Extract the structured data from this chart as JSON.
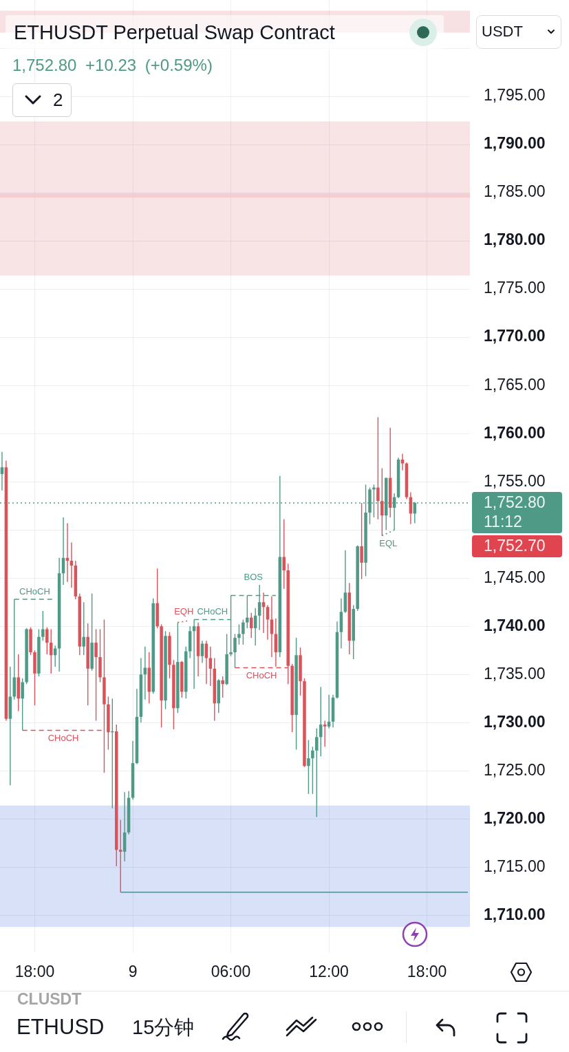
{
  "chart_data": {
    "type": "candlestick",
    "title": "ETHUSDT Perpetual Swap Contract",
    "subtitle": "1,752.80 +10.23 (+0.59%)",
    "categories": [
      null,
      null,
      null,
      null,
      null,
      null,
      null,
      null,
      "18:00",
      null,
      null,
      null,
      null,
      null,
      null,
      null,
      null,
      null,
      null,
      null,
      null,
      null,
      null,
      null,
      null,
      null,
      null,
      null,
      null,
      null,
      null,
      null,
      "9",
      null,
      null,
      null,
      null,
      null,
      null,
      null,
      null,
      null,
      null,
      null,
      null,
      null,
      null,
      null,
      null,
      null,
      null,
      null,
      null,
      null,
      null,
      null,
      "06:00",
      null,
      null,
      null,
      null,
      null,
      null,
      null,
      null,
      null,
      null,
      null,
      null,
      null,
      null,
      null,
      null,
      null,
      null,
      null,
      null,
      null,
      null,
      null,
      "12:00",
      null,
      null,
      null,
      null,
      null,
      null,
      null,
      null,
      null,
      null,
      null,
      null,
      null,
      null,
      null,
      null,
      null,
      null,
      null,
      null,
      null,
      null,
      null,
      "18:00",
      null,
      null,
      null,
      null,
      null,
      null,
      null,
      null,
      null,
      null
    ],
    "ohlc": [
      [
        1755.8,
        1758.1,
        1754.1,
        1756.5
      ],
      [
        1756.5,
        1757.2,
        1730.2,
        1730.4
      ],
      [
        1730.4,
        1735.8,
        1723.5,
        1732.7
      ],
      [
        1732.7,
        1742.8,
        1732.4,
        1734.7
      ],
      [
        1734.7,
        1737.1,
        1731.2,
        1732.5
      ],
      [
        1732.5,
        1734.6,
        1729.2,
        1734.2
      ],
      [
        1734.2,
        1739.8,
        1734.0,
        1739.7
      ],
      [
        1739.7,
        1739.9,
        1737.0,
        1737.3
      ],
      [
        1737.3,
        1737.5,
        1731.8,
        1735.1
      ],
      [
        1735.1,
        1739.7,
        1734.8,
        1738.9
      ],
      [
        1738.9,
        1741.6,
        1738.5,
        1739.7
      ],
      [
        1739.7,
        1739.9,
        1737.1,
        1738.3
      ],
      [
        1738.3,
        1739.7,
        1735.1,
        1737.0
      ],
      [
        1737.0,
        1738.0,
        1735.8,
        1737.7
      ],
      [
        1737.7,
        1747.1,
        1735.3,
        1745.5
      ],
      [
        1745.5,
        1751.3,
        1744.3,
        1747.1
      ],
      [
        1747.1,
        1750.7,
        1744.6,
        1746.8
      ],
      [
        1746.8,
        1748.7,
        1744.0,
        1746.3
      ],
      [
        1746.3,
        1746.8,
        1742.8,
        1743.1
      ],
      [
        1743.1,
        1743.4,
        1737.0,
        1737.9
      ],
      [
        1737.9,
        1742.5,
        1737.0,
        1738.9
      ],
      [
        1738.9,
        1740.3,
        1731.8,
        1735.6
      ],
      [
        1735.6,
        1743.4,
        1735.4,
        1738.3
      ],
      [
        1738.3,
        1739.7,
        1730.2,
        1736.8
      ],
      [
        1736.8,
        1739.7,
        1734.2,
        1734.7
      ],
      [
        1734.7,
        1740.7,
        1724.8,
        1731.9
      ],
      [
        1731.9,
        1732.7,
        1727.2,
        1729.0
      ],
      [
        1729.0,
        1732.5,
        1721.1,
        1729.1
      ],
      [
        1729.1,
        1729.8,
        1715.1,
        1716.8
      ],
      [
        1716.8,
        1719.9,
        1712.4,
        1716.6
      ],
      [
        1716.6,
        1722.8,
        1715.6,
        1718.6
      ],
      [
        1718.6,
        1722.9,
        1718.4,
        1722.2
      ],
      [
        1722.2,
        1728.1,
        1722.0,
        1725.8
      ],
      [
        1725.8,
        1733.5,
        1725.7,
        1730.6
      ],
      [
        1730.6,
        1736.7,
        1730.0,
        1735.0
      ],
      [
        1735.0,
        1737.9,
        1732.4,
        1735.7
      ],
      [
        1735.7,
        1737.3,
        1732.0,
        1733.2
      ],
      [
        1733.2,
        1742.9,
        1733.0,
        1742.4
      ],
      [
        1742.4,
        1746.0,
        1739.8,
        1740.0
      ],
      [
        1740.0,
        1740.2,
        1729.5,
        1732.3
      ],
      [
        1732.3,
        1739.5,
        1731.4,
        1739.0
      ],
      [
        1739.0,
        1739.4,
        1734.6,
        1736.0
      ],
      [
        1736.0,
        1736.5,
        1729.3,
        1731.5
      ],
      [
        1731.5,
        1740.4,
        1731.0,
        1736.3
      ],
      [
        1736.3,
        1736.4,
        1732.6,
        1733.2
      ],
      [
        1733.2,
        1737.9,
        1732.5,
        1737.4
      ],
      [
        1737.4,
        1740.0,
        1736.7,
        1739.5
      ],
      [
        1739.5,
        1740.7,
        1733.5,
        1740.0
      ],
      [
        1740.0,
        1740.4,
        1734.8,
        1736.9
      ],
      [
        1736.9,
        1738.5,
        1736.2,
        1738.2
      ],
      [
        1738.2,
        1738.5,
        1734.0,
        1736.7
      ],
      [
        1736.7,
        1737.9,
        1733.8,
        1735.6
      ],
      [
        1735.6,
        1736.7,
        1730.2,
        1732.0
      ],
      [
        1732.0,
        1734.5,
        1731.0,
        1734.4
      ],
      [
        1734.4,
        1734.8,
        1732.6,
        1734.0
      ],
      [
        1734.0,
        1739.2,
        1733.9,
        1737.1
      ],
      [
        1737.1,
        1743.2,
        1736.9,
        1737.3
      ],
      [
        1737.3,
        1739.2,
        1735.7,
        1738.8
      ],
      [
        1738.8,
        1740.2,
        1738.1,
        1739.2
      ],
      [
        1739.2,
        1740.7,
        1738.1,
        1740.4
      ],
      [
        1740.4,
        1743.2,
        1739.8,
        1740.9
      ],
      [
        1740.9,
        1741.4,
        1738.8,
        1739.8
      ],
      [
        1739.8,
        1741.9,
        1738.0,
        1741.1
      ],
      [
        1741.1,
        1744.3,
        1739.6,
        1742.5
      ],
      [
        1742.5,
        1743.5,
        1739.3,
        1742.0
      ],
      [
        1742.0,
        1742.2,
        1738.6,
        1740.7
      ],
      [
        1740.7,
        1743.1,
        1736.8,
        1739.2
      ],
      [
        1739.2,
        1740.8,
        1735.8,
        1737.3
      ],
      [
        1737.3,
        1755.6,
        1736.8,
        1747.2
      ],
      [
        1747.2,
        1751.1,
        1743.9,
        1745.8
      ],
      [
        1745.8,
        1746.5,
        1734.0,
        1735.9
      ],
      [
        1735.9,
        1736.1,
        1729.0,
        1730.8
      ],
      [
        1730.8,
        1738.8,
        1727.2,
        1737.0
      ],
      [
        1737.0,
        1737.8,
        1732.8,
        1734.3
      ],
      [
        1734.3,
        1734.6,
        1725.4,
        1725.5
      ],
      [
        1725.5,
        1728.2,
        1722.6,
        1726.3
      ],
      [
        1726.3,
        1727.5,
        1722.6,
        1727.1
      ],
      [
        1727.1,
        1729.4,
        1720.2,
        1728.5
      ],
      [
        1728.5,
        1733.7,
        1726.5,
        1729.8
      ],
      [
        1729.8,
        1730.2,
        1727.5,
        1729.6
      ],
      [
        1729.6,
        1732.9,
        1729.4,
        1730.1
      ],
      [
        1730.1,
        1732.9,
        1729.5,
        1732.6
      ],
      [
        1732.6,
        1740.5,
        1732.5,
        1739.4
      ],
      [
        1739.4,
        1742.9,
        1737.7,
        1741.5
      ],
      [
        1741.5,
        1747.9,
        1741.4,
        1743.5
      ],
      [
        1743.5,
        1744.5,
        1737.1,
        1738.5
      ],
      [
        1738.5,
        1742.2,
        1736.6,
        1741.8
      ],
      [
        1741.8,
        1748.4,
        1741.6,
        1748.3
      ],
      [
        1748.3,
        1752.8,
        1744.9,
        1746.6
      ],
      [
        1746.6,
        1754.7,
        1745.2,
        1751.8
      ],
      [
        1751.8,
        1754.4,
        1750.6,
        1754.2
      ],
      [
        1754.2,
        1754.7,
        1751.3,
        1754.4
      ],
      [
        1754.4,
        1761.7,
        1751.1,
        1753.0
      ],
      [
        1753.0,
        1756.4,
        1749.4,
        1751.5
      ],
      [
        1751.5,
        1755.4,
        1750.0,
        1755.4
      ],
      [
        1755.4,
        1760.6,
        1751.3,
        1752.3
      ],
      [
        1752.3,
        1753.8,
        1750.0,
        1753.4
      ],
      [
        1753.4,
        1757.5,
        1753.3,
        1757.3
      ],
      [
        1757.3,
        1757.9,
        1756.2,
        1756.9
      ],
      [
        1756.9,
        1757.0,
        1753.2,
        1753.4
      ],
      [
        1753.4,
        1753.9,
        1750.6,
        1751.7
      ],
      [
        1751.7,
        1752.9,
        1750.7,
        1752.8
      ],
      null,
      null,
      null,
      null,
      null,
      null,
      null,
      null,
      null,
      null,
      null,
      null,
      null
    ],
    "colors": [
      "#4e9a86",
      "#d9535b",
      "#4e9a86",
      "#4e9a86",
      "#d9535b",
      "#4e9a86",
      "#4e9a86",
      "#d9535b",
      "#d9535b",
      "#4e9a86",
      "#4e9a86",
      "#d9535b",
      "#d9535b",
      "#4e9a86",
      "#4e9a86",
      "#4e9a86",
      "#d9535b",
      "#d9535b",
      "#d9535b",
      "#d9535b",
      "#4e9a86",
      "#d9535b",
      "#4e9a86",
      "#d9535b",
      "#d9535b",
      "#d9535b",
      "#d9535b",
      "#4e9a86",
      "#d9535b",
      "#d9535b",
      "#4e9a86",
      "#4e9a86",
      "#4e9a86",
      "#4e9a86",
      "#4e9a86",
      "#4e9a86",
      "#d9535b",
      "#4e9a86",
      "#d9535b",
      "#d9535b",
      "#4e9a86",
      "#d9535b",
      "#d9535b",
      "#4e9a86",
      "#d9535b",
      "#4e9a86",
      "#4e9a86",
      "#4e9a86",
      "#d9535b",
      "#4e9a86",
      "#d9535b",
      "#d9535b",
      "#d9535b",
      "#4e9a86",
      "#d9535b",
      "#4e9a86",
      "#4e9a86",
      "#4e9a86",
      "#4e9a86",
      "#4e9a86",
      "#4e9a86",
      "#d9535b",
      "#4e9a86",
      "#4e9a86",
      "#d9535b",
      "#d9535b",
      "#d9535b",
      "#d9535b",
      "#4e9a86",
      "#d9535b",
      "#d9535b",
      "#d9535b",
      "#4e9a86",
      "#d9535b",
      "#d9535b",
      "#4e9a86",
      "#4e9a86",
      "#4e9a86",
      "#4e9a86",
      "#d9535b",
      "#4e9a86",
      "#4e9a86",
      "#4e9a86",
      "#4e9a86",
      "#4e9a86",
      "#d9535b",
      "#4e9a86",
      "#4e9a86",
      "#d9535b",
      "#4e9a86",
      "#4e9a86",
      "#4e9a86",
      "#d9535b",
      "#d9535b",
      "#4e9a86",
      "#d9535b",
      "#4e9a86",
      "#4e9a86",
      "#d9535b",
      "#d9535b",
      "#d9535b",
      "#4e9a86",
      null,
      null,
      null,
      null,
      null,
      null,
      null,
      null,
      null,
      null,
      null,
      null,
      null
    ],
    "series": [
      {
        "type": "line",
        "name": "CHoCH",
        "color": "#4e9a86",
        "line_style": "dashed",
        "values": [
          null,
          null,
          null,
          1742.8,
          1742.8,
          1742.8,
          1742.8,
          1742.8,
          1742.8,
          1742.8,
          1742.8,
          1742.8,
          1742.8,
          1742.8,
          null,
          null,
          null,
          null,
          null,
          null,
          null,
          null,
          null,
          null,
          null,
          null,
          null,
          null,
          null,
          null,
          null,
          null,
          null,
          null,
          null,
          null,
          null,
          null,
          null,
          null,
          null,
          null,
          null,
          null,
          null,
          null,
          null,
          null,
          null,
          null,
          null,
          null,
          null,
          null,
          null,
          null,
          null,
          null,
          null,
          null,
          null,
          null,
          null,
          null,
          null,
          null,
          null,
          null,
          null,
          null,
          null,
          null,
          null,
          null,
          null,
          null,
          null,
          null,
          null,
          null,
          null,
          null,
          null,
          null,
          null,
          null,
          null,
          null,
          null,
          null,
          null,
          null,
          null,
          null,
          null,
          null,
          null,
          null,
          null,
          null,
          null,
          null,
          null,
          null,
          null,
          null,
          null,
          null,
          null,
          null,
          null,
          null,
          null,
          null,
          null
        ]
      },
      {
        "type": "line",
        "name": "CHoCH",
        "color": "#d9535b",
        "line_style": "dashed",
        "values": [
          null,
          null,
          null,
          null,
          null,
          1729.2,
          1729.2,
          1729.2,
          1729.2,
          1729.2,
          1729.2,
          1729.2,
          1729.2,
          1729.2,
          1729.2,
          1729.2,
          1729.2,
          1729.2,
          1729.2,
          1729.2,
          1729.2,
          1729.2,
          1729.2,
          1729.2,
          1729.2,
          1729.2,
          null,
          null,
          null,
          null,
          null,
          null,
          null,
          null,
          null,
          null,
          null,
          null,
          null,
          null,
          null,
          null,
          null,
          null,
          null,
          null,
          null,
          null,
          null,
          null,
          null,
          null,
          null,
          null,
          null,
          null,
          null,
          null,
          null,
          null,
          null,
          null,
          null,
          null,
          null,
          null,
          null,
          null,
          null,
          null,
          null,
          null,
          null,
          null,
          null,
          null,
          null,
          null,
          null,
          null,
          null,
          null,
          null,
          null,
          null,
          null,
          null,
          null,
          null,
          null,
          null,
          null,
          null,
          null,
          null,
          null,
          null,
          null,
          null,
          null,
          null,
          null,
          null,
          null,
          null,
          null,
          null,
          null,
          null,
          null,
          null,
          null,
          null,
          null,
          null
        ]
      },
      {
        "type": "line",
        "name": "EQH",
        "color": "#d9535b",
        "line_style": "dotted",
        "values": [
          null,
          null,
          null,
          null,
          null,
          null,
          null,
          null,
          null,
          null,
          null,
          null,
          null,
          null,
          null,
          null,
          null,
          null,
          null,
          null,
          null,
          null,
          null,
          null,
          null,
          null,
          null,
          null,
          null,
          null,
          null,
          null,
          null,
          null,
          null,
          null,
          null,
          null,
          null,
          null,
          null,
          null,
          null,
          1740.4,
          null,
          null,
          1740.6,
          null,
          null,
          null,
          null,
          null,
          null,
          null,
          null,
          null,
          null,
          null,
          null,
          null,
          null,
          null,
          null,
          null,
          null,
          null,
          null,
          null,
          null,
          null,
          null,
          null,
          null,
          null,
          null,
          null,
          null,
          null,
          null,
          null,
          null,
          null,
          null,
          null,
          null,
          null,
          null,
          null,
          null,
          null,
          null,
          null,
          null,
          null,
          null,
          null,
          null,
          null,
          null,
          null,
          null,
          null,
          null,
          null,
          null,
          null,
          null,
          null,
          null,
          null,
          null,
          null,
          null,
          null,
          null
        ]
      },
      {
        "type": "line",
        "name": "CHoCH",
        "color": "#4e9a86",
        "line_style": "dashed",
        "values": [
          null,
          null,
          null,
          null,
          null,
          null,
          null,
          null,
          null,
          null,
          null,
          null,
          null,
          null,
          null,
          null,
          null,
          null,
          null,
          null,
          null,
          null,
          null,
          null,
          null,
          null,
          null,
          null,
          null,
          null,
          null,
          null,
          null,
          null,
          null,
          null,
          null,
          null,
          null,
          null,
          null,
          null,
          null,
          null,
          null,
          null,
          null,
          1740.7,
          1740.7,
          1740.7,
          1740.7,
          1740.7,
          1740.7,
          1740.7,
          1740.7,
          1740.7,
          1740.7,
          null,
          null,
          null,
          null,
          null,
          null,
          null,
          null,
          null,
          null,
          null,
          null,
          null,
          null,
          null,
          null,
          null,
          null,
          null,
          null,
          null,
          null,
          null,
          null,
          null,
          null,
          null,
          null,
          null,
          null,
          null,
          null,
          null,
          null,
          null,
          null,
          null,
          null,
          null,
          null,
          null,
          null,
          null,
          null,
          null,
          null,
          null,
          null,
          null,
          null,
          null,
          null,
          null,
          null,
          null,
          null,
          null,
          null
        ]
      },
      {
        "type": "line",
        "name": "BOS",
        "color": "#4e9a86",
        "line_style": "dashed",
        "values": [
          null,
          null,
          null,
          null,
          null,
          null,
          null,
          null,
          null,
          null,
          null,
          null,
          null,
          null,
          null,
          null,
          null,
          null,
          null,
          null,
          null,
          null,
          null,
          null,
          null,
          null,
          null,
          null,
          null,
          null,
          null,
          null,
          null,
          null,
          null,
          null,
          null,
          null,
          null,
          null,
          null,
          null,
          null,
          null,
          null,
          null,
          null,
          null,
          null,
          null,
          null,
          null,
          null,
          null,
          null,
          null,
          1743.2,
          1743.2,
          1743.2,
          1743.2,
          1743.2,
          1743.2,
          1743.2,
          1743.2,
          1743.2,
          1743.2,
          1743.2,
          1743.2,
          null,
          null,
          null,
          null,
          null,
          null,
          null,
          null,
          null,
          null,
          null,
          null,
          null,
          null,
          null,
          null,
          null,
          null,
          null,
          null,
          null,
          null,
          null,
          null,
          null,
          null,
          null,
          null,
          null,
          null,
          null,
          null,
          null,
          null,
          null,
          null,
          null,
          null,
          null,
          null,
          null,
          null,
          null,
          null,
          null,
          null,
          null
        ]
      },
      {
        "type": "line",
        "name": "CHoCH",
        "color": "#d9535b",
        "line_style": "dashed",
        "values": [
          null,
          null,
          null,
          null,
          null,
          null,
          null,
          null,
          null,
          null,
          null,
          null,
          null,
          null,
          null,
          null,
          null,
          null,
          null,
          null,
          null,
          null,
          null,
          null,
          null,
          null,
          null,
          null,
          null,
          null,
          null,
          null,
          null,
          null,
          null,
          null,
          null,
          null,
          null,
          null,
          null,
          null,
          null,
          null,
          null,
          null,
          null,
          null,
          null,
          null,
          null,
          null,
          null,
          null,
          null,
          null,
          null,
          1735.7,
          1735.7,
          1735.7,
          1735.7,
          1735.7,
          1735.7,
          1735.7,
          1735.7,
          1735.7,
          1735.7,
          1735.7,
          1735.7,
          1735.7,
          1735.7,
          null,
          null,
          null,
          null,
          null,
          null,
          null,
          null,
          null,
          null,
          null,
          null,
          null,
          null,
          null,
          null,
          null,
          null,
          null,
          null,
          null,
          null,
          null,
          null,
          null,
          null,
          null,
          null,
          null,
          null,
          null,
          null,
          null,
          null,
          null,
          null,
          null,
          null,
          null,
          null,
          null,
          null,
          null,
          null
        ]
      },
      {
        "type": "line",
        "name": "EQL",
        "color": "#4e9a86",
        "line_style": "dotted",
        "values": [
          null,
          null,
          null,
          null,
          null,
          null,
          null,
          null,
          null,
          null,
          null,
          null,
          null,
          null,
          null,
          null,
          null,
          null,
          null,
          null,
          null,
          null,
          null,
          null,
          null,
          null,
          null,
          null,
          null,
          null,
          null,
          null,
          null,
          null,
          null,
          null,
          null,
          null,
          null,
          null,
          null,
          null,
          null,
          null,
          null,
          null,
          null,
          null,
          null,
          null,
          null,
          null,
          null,
          null,
          null,
          null,
          null,
          null,
          null,
          null,
          null,
          null,
          null,
          null,
          null,
          null,
          null,
          null,
          null,
          null,
          null,
          null,
          null,
          null,
          null,
          null,
          null,
          null,
          null,
          null,
          null,
          null,
          null,
          null,
          null,
          null,
          null,
          null,
          null,
          null,
          null,
          null,
          null,
          1749.4,
          null,
          null,
          1750.0,
          null,
          null,
          null,
          null,
          null,
          null,
          null,
          null,
          null,
          null,
          null,
          null,
          null,
          null,
          null,
          null,
          null,
          null
        ]
      },
      {
        "type": "line",
        "color": "#4a8f8f",
        "line_style": "solid",
        "values": [
          null,
          null,
          null,
          null,
          null,
          null,
          null,
          null,
          null,
          null,
          null,
          null,
          null,
          null,
          null,
          null,
          null,
          null,
          null,
          null,
          null,
          null,
          null,
          null,
          null,
          null,
          null,
          null,
          null,
          1712.4,
          1712.4,
          1712.4,
          1712.4,
          1712.4,
          1712.4,
          1712.4,
          1712.4,
          1712.4,
          1712.4,
          1712.4,
          1712.4,
          1712.4,
          1712.4,
          1712.4,
          1712.4,
          1712.4,
          1712.4,
          1712.4,
          1712.4,
          1712.4,
          1712.4,
          1712.4,
          1712.4,
          1712.4,
          1712.4,
          1712.4,
          1712.4,
          1712.4,
          1712.4,
          1712.4,
          1712.4,
          1712.4,
          1712.4,
          1712.4,
          1712.4,
          1712.4,
          1712.4,
          1712.4,
          1712.4,
          1712.4,
          1712.4,
          1712.4,
          1712.4,
          1712.4,
          1712.4,
          1712.4,
          1712.4,
          1712.4,
          1712.4,
          1712.4,
          1712.4,
          1712.4,
          1712.4,
          1712.4,
          1712.4,
          1712.4,
          1712.4,
          1712.4,
          1712.4,
          1712.4,
          1712.4,
          1712.4,
          1712.4,
          1712.4,
          1712.4,
          1712.4,
          1712.4,
          1712.4,
          1712.4,
          1712.4,
          1712.4,
          1712.4,
          1712.4,
          1712.4,
          1712.4,
          1712.4,
          1712.4,
          1712.4,
          1712.4,
          1712.4,
          1712.4,
          1712.4,
          1712.4,
          1712.4,
          1712.4
        ]
      }
    ],
    "ylim": [
      1706.1,
      1805
    ],
    "yticks": [
      {
        "value": 1710,
        "label": "1,710.00"
      },
      {
        "value": 1715,
        "label": "1,715.00"
      },
      {
        "value": 1720,
        "label": "1,720.00"
      },
      {
        "value": 1725,
        "label": "1,725.00"
      },
      {
        "value": 1730,
        "label": "1,730.00"
      },
      {
        "value": 1735,
        "label": "1,735.00"
      },
      {
        "value": 1740,
        "label": "1,740.00"
      },
      {
        "value": 1745,
        "label": "1,745.00"
      },
      {
        "value": 1750,
        "label": null
      },
      {
        "value": 1755,
        "label": "1,755.00"
      },
      {
        "value": 1760,
        "label": "1,760.00"
      },
      {
        "value": 1765,
        "label": "1,765.00"
      },
      {
        "value": 1770,
        "label": "1,770.00"
      },
      {
        "value": 1775,
        "label": "1,775.00"
      },
      {
        "value": 1780,
        "label": "1,780.00"
      },
      {
        "value": 1785,
        "label": "1,785.00"
      },
      {
        "value": 1790,
        "label": "1,790.00"
      },
      {
        "value": 1795,
        "label": "1,795.00"
      },
      {
        "value": 1800,
        "label": null
      }
    ],
    "grid": true,
    "bands": [
      {
        "axis": "y",
        "from": 1801.6,
        "to": 1803.9,
        "color": "#f8e1e3"
      },
      {
        "axis": "y",
        "from": 1776.4,
        "to": 1792.4,
        "color": "#f8e4e5"
      },
      {
        "axis": "y",
        "from": 1708.8,
        "to": 1721.4,
        "color": "#d8e1f7"
      }
    ],
    "ref_lines": [
      {
        "axis": "y",
        "value": 1752.8,
        "label": "1,752.80",
        "color": "#4e9a86",
        "line_style": "dotted"
      },
      {
        "axis": "y",
        "value": 1784.7,
        "color": "#f3cdd0",
        "line_style": "solid"
      }
    ],
    "annotations": [
      "11:12",
      "1,752.70",
      "USDT",
      "2",
      "CLUSDT",
      "ETHUSD",
      "15分钟"
    ]
  }
}
